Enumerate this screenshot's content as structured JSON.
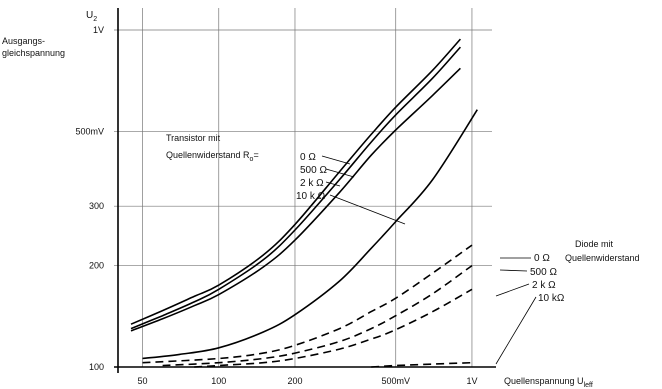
{
  "chart_data": {
    "type": "line",
    "xscale": "log",
    "yscale": "log",
    "xlim": [
      40,
      1200
    ],
    "ylim": [
      100,
      1000
    ],
    "xlabel": "Quellenspannung U",
    "xlabel_sub": "leff",
    "ylabel": "U",
    "ylabel_sub": "2",
    "ytitle": [
      "Ausgangs-",
      "gleichspannung"
    ],
    "xticks": [
      {
        "value": 50,
        "label": "50"
      },
      {
        "value": 100,
        "label": "100"
      },
      {
        "value": 200,
        "label": "200"
      },
      {
        "value": 500,
        "label": "500mV"
      },
      {
        "value": 1000,
        "label": "1V"
      }
    ],
    "yticks": [
      {
        "value": 100,
        "label": "100"
      },
      {
        "value": 200,
        "label": "200"
      },
      {
        "value": 300,
        "label": "300"
      },
      {
        "value": 500,
        "label": "500mV"
      },
      {
        "value": 1000,
        "label": "1V"
      }
    ],
    "grid": true,
    "series": [
      {
        "group": "transistor",
        "name": "0 Ω",
        "style": "solid",
        "x": [
          45,
          60,
          80,
          100,
          150,
          200,
          300,
          400,
          500,
          700,
          900
        ],
        "y": [
          134,
          147,
          162,
          175,
          215,
          265,
          380,
          490,
          590,
          760,
          940
        ]
      },
      {
        "group": "transistor",
        "name": "500 Ω",
        "style": "solid",
        "x": [
          45,
          60,
          80,
          100,
          150,
          200,
          300,
          400,
          500,
          700,
          900
        ],
        "y": [
          130,
          142,
          156,
          170,
          208,
          255,
          360,
          465,
          560,
          720,
          890
        ]
      },
      {
        "group": "transistor",
        "name": "2 kΩ",
        "style": "solid",
        "x": [
          45,
          60,
          80,
          100,
          150,
          200,
          300,
          400,
          500,
          700,
          900
        ],
        "y": [
          128,
          139,
          152,
          164,
          198,
          238,
          330,
          425,
          505,
          640,
          770
        ]
      },
      {
        "group": "transistor",
        "name": "10 kΩ",
        "style": "solid",
        "x": [
          50,
          70,
          100,
          150,
          200,
          300,
          400,
          500,
          700,
          1050
        ],
        "y": [
          106,
          109,
          114,
          127,
          143,
          180,
          225,
          270,
          360,
          580
        ]
      },
      {
        "group": "diode",
        "name": "0 Ω",
        "style": "dashed",
        "x": [
          50,
          100,
          150,
          200,
          300,
          400,
          500,
          700,
          1000
        ],
        "y": [
          103,
          106,
          110,
          116,
          130,
          146,
          160,
          190,
          230
        ]
      },
      {
        "group": "diode",
        "name": "500 Ω",
        "style": "dashed",
        "x": [
          60,
          100,
          150,
          200,
          300,
          400,
          500,
          700,
          1000
        ],
        "y": [
          101,
          103,
          106,
          110,
          119,
          130,
          142,
          165,
          200
        ]
      },
      {
        "group": "diode",
        "name": "2 kΩ",
        "style": "dashed",
        "x": [
          80,
          100,
          150,
          200,
          300,
          400,
          500,
          700,
          1000
        ],
        "y": [
          100,
          101,
          103,
          106,
          113,
          121,
          129,
          146,
          170
        ]
      },
      {
        "group": "diode",
        "name": "10 kΩ",
        "style": "dashed",
        "x": [
          400,
          500,
          700,
          1000
        ],
        "y": [
          100,
          101,
          102,
          103
        ]
      }
    ],
    "annotations": {
      "transistor_title": [
        "Transistor mit",
        "Quellenwiderstand R"
      ],
      "transistor_title_sub": "o",
      "transistor_title_eq": "=",
      "transistor_labels": [
        "0   Ω",
        "500   Ω",
        "2 k Ω",
        "10 k Ω"
      ],
      "diode_title": [
        "Diode mit",
        "Quellenwiderstand"
      ],
      "diode_labels": [
        "0   Ω",
        "500   Ω",
        "2 k Ω",
        "10 kΩ"
      ]
    }
  }
}
